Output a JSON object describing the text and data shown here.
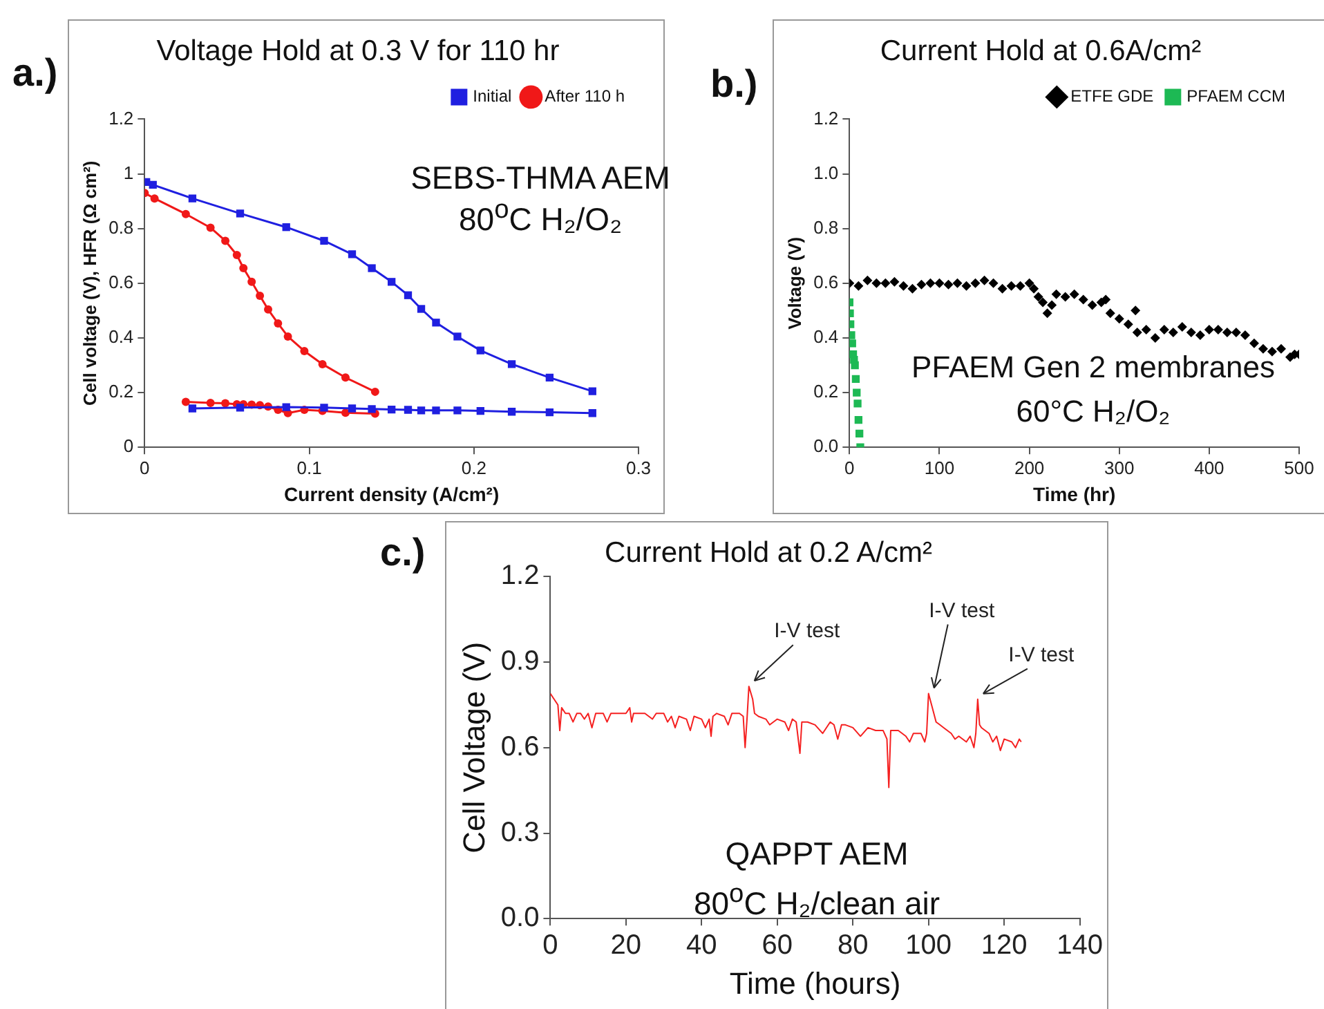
{
  "chart_data": [
    {
      "type": "line",
      "title": "Voltage Hold at 0.3 V for 110 hr",
      "xlabel": "Current density (A/cm²)",
      "ylabel": "Cell voltage (V), HFR (Ω cm²)",
      "xlim": [
        0,
        0.3
      ],
      "xticks": [
        0,
        0.1,
        0.2,
        0.3
      ],
      "ylim": [
        0,
        1.2
      ],
      "yticks": [
        0,
        0.2,
        0.4,
        0.6,
        0.8,
        1,
        1.2
      ],
      "grid": false,
      "legend": "top right",
      "line_style": "solid",
      "annotations": [
        "a.)",
        "SEBS-THMA AEM",
        "80$^{o}$C H₂/O₂"
      ],
      "series": [
        {
          "name": "Initial",
          "color": "#1f1fe0",
          "marker": "square",
          "x": [
            0.001,
            0.005,
            0.029,
            0.058,
            0.086,
            0.109,
            0.126,
            0.138,
            0.15,
            0.16,
            0.168,
            0.177,
            0.19,
            0.204,
            0.223,
            0.246,
            0.272
          ],
          "values": [
            0.97,
            0.96,
            0.91,
            0.855,
            0.805,
            0.755,
            0.706,
            0.655,
            0.605,
            0.556,
            0.506,
            0.456,
            0.405,
            0.354,
            0.304,
            0.255,
            0.205
          ]
        },
        {
          "name": "After 110 h",
          "color": "#f01818",
          "marker": "circle",
          "x": [
            0,
            0.006,
            0.025,
            0.04,
            0.049,
            0.056,
            0.06,
            0.065,
            0.07,
            0.075,
            0.081,
            0.087,
            0.097,
            0.108,
            0.122,
            0.14
          ],
          "values": [
            0.93,
            0.91,
            0.853,
            0.803,
            0.755,
            0.703,
            0.655,
            0.605,
            0.554,
            0.504,
            0.453,
            0.405,
            0.352,
            0.304,
            0.255,
            0.203
          ]
        },
        {
          "color": "#1f1fe0",
          "marker": "square",
          "x": [
            0.029,
            0.058,
            0.086,
            0.109,
            0.126,
            0.138,
            0.15,
            0.16,
            0.168,
            0.177,
            0.19,
            0.204,
            0.223,
            0.246,
            0.272
          ],
          "values": [
            0.142,
            0.145,
            0.147,
            0.145,
            0.142,
            0.14,
            0.138,
            0.137,
            0.135,
            0.135,
            0.135,
            0.133,
            0.13,
            0.128,
            0.125
          ]
        },
        {
          "color": "#f01818",
          "marker": "circle",
          "x": [
            0.025,
            0.04,
            0.049,
            0.056,
            0.06,
            0.065,
            0.07,
            0.075,
            0.081,
            0.087,
            0.097,
            0.108,
            0.122,
            0.14
          ],
          "values": [
            0.166,
            0.162,
            0.161,
            0.157,
            0.157,
            0.156,
            0.154,
            0.149,
            0.137,
            0.125,
            0.137,
            0.133,
            0.126,
            0.123
          ]
        }
      ]
    },
    {
      "type": "scatter",
      "title": "Current Hold at 0.6A/cm²",
      "xlabel": "Time (hr)",
      "ylabel": "Voltage (V)",
      "xlim": [
        0,
        500
      ],
      "xticks": [
        0,
        100,
        200,
        300,
        400,
        500
      ],
      "ylim": [
        0,
        1.2
      ],
      "yticks": [
        {
          "value": 0,
          "label": "0.0"
        },
        {
          "value": 0.2,
          "label": "0.2"
        },
        {
          "value": 0.4,
          "label": "0.4"
        },
        {
          "value": 0.6,
          "label": "0.6"
        },
        {
          "value": 0.8,
          "label": "0.8"
        },
        {
          "value": 1,
          "label": "1.0"
        },
        {
          "value": 1.2,
          "label": "1.2"
        }
      ],
      "grid": false,
      "legend": "top right",
      "annotations": [
        "b.)",
        "PFAEM Gen 2 membranes",
        "60°C H₂/O₂"
      ],
      "series": [
        {
          "name": "ETFE GDE",
          "color": "#000000",
          "marker": "diamond",
          "x": [
            0,
            10,
            20,
            30,
            40,
            50,
            60,
            70,
            80,
            90,
            100,
            110,
            120,
            130,
            140,
            150,
            160,
            170,
            180,
            190,
            200,
            205,
            210,
            215,
            220,
            225,
            230,
            240,
            250,
            260,
            270,
            280,
            285,
            290,
            300,
            310,
            318,
            320,
            330,
            340,
            350,
            360,
            370,
            380,
            390,
            400,
            410,
            420,
            430,
            440,
            450,
            460,
            470,
            480,
            490,
            495,
            500
          ],
          "values": [
            0.6,
            0.59,
            0.61,
            0.6,
            0.6,
            0.605,
            0.59,
            0.58,
            0.595,
            0.6,
            0.6,
            0.595,
            0.6,
            0.59,
            0.6,
            0.61,
            0.6,
            0.58,
            0.59,
            0.59,
            0.6,
            0.58,
            0.55,
            0.53,
            0.49,
            0.52,
            0.56,
            0.55,
            0.56,
            0.54,
            0.52,
            0.53,
            0.54,
            0.49,
            0.47,
            0.45,
            0.5,
            0.42,
            0.43,
            0.4,
            0.43,
            0.42,
            0.44,
            0.42,
            0.41,
            0.43,
            0.43,
            0.42,
            0.42,
            0.41,
            0.38,
            0.36,
            0.35,
            0.36,
            0.33,
            0.34,
            0.34
          ]
        },
        {
          "name": "PFAEM CCM",
          "color": "#1db954",
          "marker": "square",
          "x": [
            0,
            0.5,
            1,
            2,
            3,
            4,
            5,
            6,
            7,
            8,
            9,
            10,
            11,
            12
          ],
          "values": [
            0.53,
            0.49,
            0.45,
            0.41,
            0.38,
            0.34,
            0.32,
            0.3,
            0.25,
            0.2,
            0.16,
            0.1,
            0.05,
            0
          ]
        }
      ]
    },
    {
      "type": "line",
      "title": "Current Hold at 0.2 A/cm²",
      "xlabel": "Time (hours)",
      "ylabel": "Cell Voltage (V)",
      "xlim": [
        0,
        140
      ],
      "xticks": [
        0,
        20,
        40,
        60,
        80,
        100,
        120,
        140
      ],
      "ylim": [
        0,
        1.2
      ],
      "yticks": [
        {
          "value": 0,
          "label": "0.0"
        },
        {
          "value": 0.3,
          "label": "0.3"
        },
        {
          "value": 0.6,
          "label": "0.6"
        },
        {
          "value": 0.9,
          "label": "0.9"
        },
        {
          "value": 1.2,
          "label": "1.2"
        }
      ],
      "grid": false,
      "marker": "none",
      "line_style": "solid",
      "annotations": [
        "c.)",
        "QAPPT AEM",
        "80$^{o}$C H₂/clean air",
        {
          "text": "I-V test",
          "x": 52.5,
          "y": 0.815
        },
        {
          "text": "I-V test",
          "x": 100,
          "y": 0.79
        },
        {
          "text": "I-V test",
          "x": 113,
          "y": 0.77
        }
      ],
      "series": [
        {
          "color": "#f52020",
          "x": [
            0,
            1,
            2,
            2.5,
            3,
            4,
            5,
            6,
            7,
            8,
            9,
            10,
            11,
            12,
            14,
            15,
            16,
            18,
            20,
            21,
            21.5,
            22,
            25,
            27,
            28,
            30,
            31,
            32,
            33,
            34,
            36,
            37,
            38,
            40,
            41,
            42,
            42.5,
            43,
            44,
            46,
            47,
            48,
            50,
            51,
            51.5,
            52,
            52.5,
            53.5,
            54,
            55,
            57,
            58,
            60,
            62,
            63,
            64,
            65,
            66,
            66.5,
            68,
            70,
            72,
            74,
            75,
            76,
            77,
            78,
            80,
            82,
            84,
            86,
            88,
            89,
            89.5,
            90,
            92,
            94,
            95,
            96,
            98,
            99,
            99.5,
            100,
            101,
            102,
            103,
            104,
            106,
            107,
            108,
            110,
            111,
            112,
            112.5,
            113,
            113.5,
            114,
            116,
            117,
            118,
            119,
            120,
            122,
            123,
            124,
            124.5
          ],
          "values": [
            0.79,
            0.77,
            0.75,
            0.66,
            0.74,
            0.72,
            0.72,
            0.69,
            0.72,
            0.72,
            0.7,
            0.72,
            0.67,
            0.72,
            0.72,
            0.69,
            0.72,
            0.72,
            0.72,
            0.74,
            0.69,
            0.72,
            0.72,
            0.7,
            0.72,
            0.72,
            0.69,
            0.71,
            0.67,
            0.71,
            0.7,
            0.66,
            0.71,
            0.7,
            0.67,
            0.7,
            0.64,
            0.71,
            0.72,
            0.71,
            0.68,
            0.72,
            0.72,
            0.71,
            0.6,
            0.7,
            0.815,
            0.77,
            0.72,
            0.71,
            0.7,
            0.68,
            0.7,
            0.69,
            0.66,
            0.7,
            0.69,
            0.58,
            0.69,
            0.69,
            0.68,
            0.65,
            0.69,
            0.68,
            0.63,
            0.68,
            0.68,
            0.67,
            0.64,
            0.67,
            0.66,
            0.66,
            0.63,
            0.46,
            0.66,
            0.66,
            0.64,
            0.62,
            0.65,
            0.65,
            0.62,
            0.65,
            0.79,
            0.74,
            0.69,
            0.68,
            0.67,
            0.65,
            0.63,
            0.64,
            0.62,
            0.64,
            0.6,
            0.65,
            0.77,
            0.68,
            0.67,
            0.65,
            0.62,
            0.64,
            0.59,
            0.63,
            0.62,
            0.6,
            0.63,
            0.62
          ]
        }
      ]
    }
  ]
}
